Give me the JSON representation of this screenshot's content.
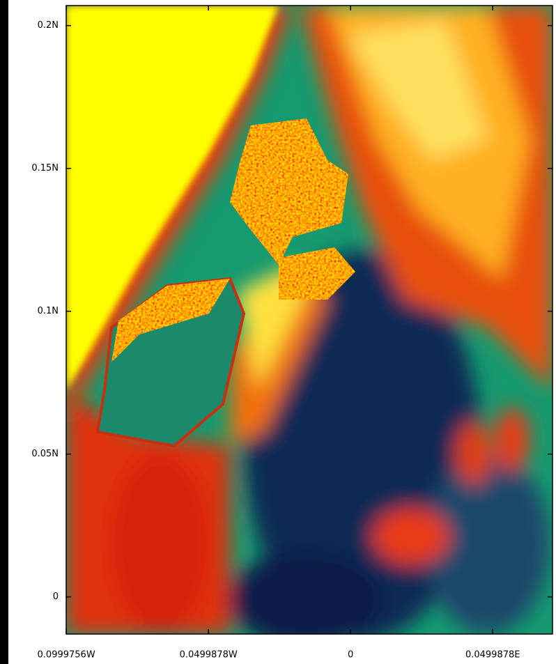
{
  "chart_data": {
    "type": "map",
    "xlim": [
      -0.1,
      0.071
    ],
    "ylim": [
      -0.013,
      0.207
    ],
    "xticks": [
      {
        "value": -0.0999756,
        "label": "0.0999756W"
      },
      {
        "value": -0.0499878,
        "label": "0.0499878W"
      },
      0,
      {
        "value": 0.0499878,
        "label": "0.0499878E"
      }
    ],
    "yticks": [
      {
        "value": 0.2,
        "label": "0.2N"
      },
      {
        "value": 0.15,
        "label": "0.15N"
      },
      {
        "value": 0.1,
        "label": "0.1N"
      },
      {
        "value": 0.05,
        "label": "0.05N"
      },
      0
    ]
  }
}
